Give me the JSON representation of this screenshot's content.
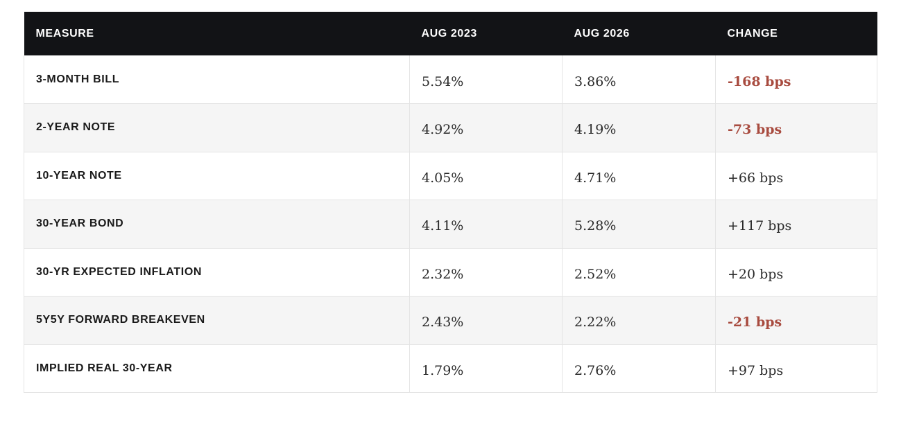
{
  "table": {
    "headers": [
      "MEASURE",
      "AUG 2023",
      "AUG 2026",
      "CHANGE"
    ],
    "rows": [
      {
        "measure": "3-MONTH BILL",
        "aug2023": "5.54%",
        "aug2026": "3.86%",
        "change": "-168 bps",
        "negative": true
      },
      {
        "measure": "2-YEAR NOTE",
        "aug2023": "4.92%",
        "aug2026": "4.19%",
        "change": "-73 bps",
        "negative": true
      },
      {
        "measure": "10-YEAR NOTE",
        "aug2023": "4.05%",
        "aug2026": "4.71%",
        "change": "+66 bps",
        "negative": false
      },
      {
        "measure": "30-YEAR BOND",
        "aug2023": "4.11%",
        "aug2026": "5.28%",
        "change": "+117 bps",
        "negative": false
      },
      {
        "measure": "30-YR EXPECTED INFLATION",
        "aug2023": "2.32%",
        "aug2026": "2.52%",
        "change": "+20 bps",
        "negative": false
      },
      {
        "measure": "5Y5Y FORWARD BREAKEVEN",
        "aug2023": "2.43%",
        "aug2026": "2.22%",
        "change": "-21 bps",
        "negative": true
      },
      {
        "measure": "IMPLIED REAL 30-YEAR",
        "aug2023": "1.79%",
        "aug2026": "2.76%",
        "change": "+97 bps",
        "negative": false
      }
    ]
  },
  "colors": {
    "header_bg": "#121316",
    "negative_change": "#a84b3f",
    "row_alt_bg": "#f5f5f5"
  }
}
